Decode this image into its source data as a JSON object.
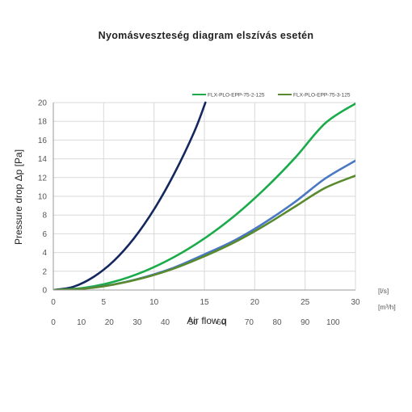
{
  "chart_data": {
    "type": "line",
    "title": "Nyomásveszteség diagram elszívás esetén",
    "xlabel": "Air flow q",
    "ylabel": "Pressure drop Δp [Pa]",
    "x_unit_primary": "[l/s]",
    "x_unit_secondary": "[m³/h]",
    "xlim": [
      0,
      30
    ],
    "ylim": [
      0,
      20
    ],
    "x_ticks": [
      0,
      5,
      10,
      15,
      20,
      25,
      30
    ],
    "x_tick_labels": [
      "0",
      "5",
      "10",
      "15",
      "20",
      "25",
      "30"
    ],
    "x2_ticks": [
      0,
      10,
      20,
      30,
      40,
      50,
      60,
      70,
      80,
      90,
      100
    ],
    "x2_tick_labels": [
      "0",
      "10",
      "20",
      "30",
      "40",
      "50",
      "60",
      "70",
      "80",
      "90",
      "100"
    ],
    "x2_per_x": 3.6,
    "y_ticks": [
      0,
      2,
      4,
      6,
      8,
      10,
      12,
      14,
      16,
      18,
      20
    ],
    "y_tick_labels": [
      "0",
      "2",
      "4",
      "6",
      "8",
      "10",
      "12",
      "14",
      "16",
      "18",
      "20"
    ],
    "grid": true,
    "legend_position": "top-right",
    "series": [
      {
        "name": "",
        "color": "#14275e",
        "x": [
          0,
          2,
          4,
          6,
          8,
          10,
          12,
          14,
          15.1
        ],
        "y": [
          0,
          0.35,
          1.4,
          3.1,
          5.5,
          8.6,
          12.4,
          16.9,
          20
        ]
      },
      {
        "name": "FLX-PLO-EPP-75-2-125",
        "color": "#1aab4b",
        "x": [
          0,
          3,
          6,
          9,
          12,
          15,
          18,
          21,
          24,
          27,
          30
        ],
        "y": [
          0,
          0.22,
          0.88,
          1.98,
          3.52,
          5.5,
          7.92,
          10.8,
          14.1,
          17.8,
          19.9
        ]
      },
      {
        "name": "",
        "color": "#4a78c2",
        "x": [
          0,
          3,
          6,
          9,
          12,
          15,
          18,
          21,
          24,
          27,
          30
        ],
        "y": [
          0,
          0.15,
          0.6,
          1.36,
          2.4,
          3.8,
          5.3,
          7.2,
          9.4,
          11.9,
          13.8
        ]
      },
      {
        "name": "FLX-PLO-EPP-75-3-125",
        "color": "#5a8a2e",
        "x": [
          0,
          3,
          6,
          9,
          12,
          15,
          18,
          21,
          24,
          27,
          30
        ],
        "y": [
          0,
          0.14,
          0.58,
          1.3,
          2.3,
          3.6,
          5.1,
          6.9,
          8.9,
          10.9,
          12.2
        ]
      }
    ]
  }
}
